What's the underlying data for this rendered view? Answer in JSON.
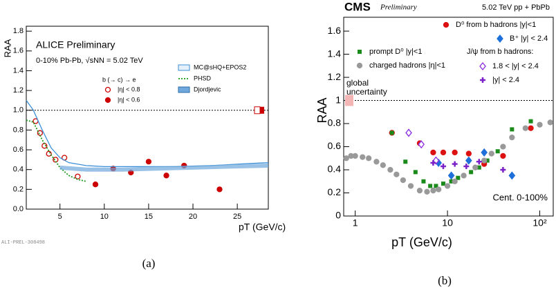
{
  "chart_data": [
    {
      "type": "scatter",
      "title": "ALICE Preliminary",
      "subtitle": "0-10% Pb-Pb, √sNN = 5.02 TeV",
      "legend_title": "b (→ c) → e",
      "xlabel": "pT (GeV/c)",
      "ylabel": "RAA",
      "watermark": "ALI-PREL-308498",
      "caption": "(a)",
      "xlim": [
        1.2,
        28.5
      ],
      "xticks": [
        5,
        10,
        15,
        20,
        25
      ],
      "ylim": [
        0,
        1.85
      ],
      "yticks": [
        {
          "value": 0,
          "label": "0.0"
        },
        0.2,
        0.4,
        0.6,
        0.8,
        {
          "value": 1,
          "label": "1.0"
        },
        1.2,
        1.4,
        1.6,
        1.8
      ],
      "reference_line": 1,
      "series": [
        {
          "name": "|η| < 0.8",
          "color": "#cc0000",
          "marker": "open-circle",
          "x": [
            2.25,
            2.75,
            3.25,
            3.75,
            4.5,
            5.5,
            7
          ],
          "values": [
            0.89,
            0.77,
            0.64,
            0.56,
            0.5,
            0.52,
            0.33
          ]
        },
        {
          "name": "|η| < 0.6",
          "color": "#cc0000",
          "marker": "circle",
          "x": [
            9,
            11,
            13,
            15,
            17,
            19,
            23
          ],
          "values": [
            0.25,
            0.41,
            0.37,
            0.48,
            0.34,
            0.44,
            0.2
          ]
        },
        {
          "name": "MC@sHQ+EPOS2",
          "color": "#3a8fd8",
          "marker": "line",
          "x": [
            1.2,
            2,
            3,
            4,
            5,
            6,
            8,
            10,
            14,
            18,
            22,
            26,
            28.5
          ],
          "values": [
            1.1,
            1.0,
            0.8,
            0.62,
            0.52,
            0.47,
            0.44,
            0.43,
            0.43,
            0.43,
            0.44,
            0.46,
            0.47
          ]
        },
        {
          "name": "PHSD",
          "color": "#1a9a1a",
          "marker": "dotted",
          "x": [
            1.2,
            2,
            3,
            4,
            5,
            6,
            7,
            8
          ],
          "values": [
            0.9,
            0.88,
            0.7,
            0.55,
            0.42,
            0.34,
            0.3,
            0.28
          ]
        },
        {
          "name": "Djordjevic",
          "color": "#6fa8dc",
          "marker": "band",
          "x": [
            5,
            8,
            12,
            16,
            20,
            24,
            28.5
          ],
          "values": [
            0.42,
            0.4,
            0.4,
            0.41,
            0.42,
            0.43,
            0.44
          ]
        }
      ]
    },
    {
      "type": "scatter",
      "title": "CMS",
      "subtitle": "Preliminary",
      "energy": "5.02 TeV pp + PbPb",
      "xlabel": "pT (GeV/c)",
      "ylabel": "RAA",
      "caption": "(b)",
      "annotations": [
        "global",
        "uncertainty",
        "Cent. 0-100%"
      ],
      "legend_group_title": "J/ψ from b hadrons:",
      "xlog": true,
      "xlim": [
        0.75,
        140
      ],
      "xticks": [
        1,
        10,
        {
          "value": 100,
          "label": "10²"
        }
      ],
      "ylim": [
        0,
        1.72
      ],
      "yticks": [
        0,
        0.2,
        0.4,
        0.6,
        0.8,
        1,
        1.2,
        1.4,
        1.6
      ],
      "reference_line": 1,
      "series": [
        {
          "name": "D⁰ from b hadrons |y|<1",
          "color": "#dd1111",
          "marker": "circle",
          "x": [
            2.5,
            5,
            7,
            9,
            12,
            17,
            25,
            40,
            80
          ],
          "values": [
            0.72,
            0.63,
            0.55,
            0.55,
            0.55,
            0.54,
            0.45,
            0.52,
            0.76
          ]
        },
        {
          "name": "B⁺ |y| < 2.4",
          "color": "#1e6fd9",
          "marker": "diamond",
          "x": [
            8,
            11,
            17,
            25,
            50
          ],
          "values": [
            0.46,
            0.35,
            0.48,
            0.55,
            0.35
          ]
        },
        {
          "name": "prompt D⁰ |y|<1",
          "color": "#1a8a1a",
          "marker": "square",
          "x": [
            2.5,
            3.5,
            4.5,
            5.5,
            6.5,
            7.5,
            9,
            11,
            13,
            15,
            18,
            22,
            27,
            35,
            50,
            80
          ],
          "values": [
            0.72,
            0.47,
            0.38,
            0.3,
            0.26,
            0.26,
            0.28,
            0.3,
            0.33,
            0.35,
            0.38,
            0.42,
            0.48,
            0.56,
            0.75,
            0.82
          ]
        },
        {
          "name": "charged hadrons |η|<1",
          "color": "#999999",
          "marker": "circle",
          "x": [
            0.8,
            0.9,
            1,
            1.2,
            1.4,
            1.7,
            2,
            2.4,
            2.8,
            3.3,
            4,
            5,
            6,
            7,
            8,
            10,
            12,
            15,
            20,
            25,
            30,
            40,
            50,
            70,
            100,
            130
          ],
          "values": [
            0.5,
            0.52,
            0.52,
            0.51,
            0.5,
            0.47,
            0.44,
            0.4,
            0.36,
            0.31,
            0.26,
            0.22,
            0.21,
            0.22,
            0.23,
            0.26,
            0.3,
            0.35,
            0.42,
            0.48,
            0.54,
            0.6,
            0.68,
            0.76,
            0.79,
            0.81
          ]
        },
        {
          "name": "1.8 < |y| < 2.4",
          "color": "#8a2be2",
          "marker": "open-diamond",
          "x": [
            3.8,
            5.2,
            7.5
          ],
          "values": [
            0.72,
            0.62,
            0.48
          ]
        },
        {
          "name": "|y| < 2.4",
          "color": "#7a22c8",
          "marker": "cross",
          "x": [
            7,
            9,
            12,
            16,
            22,
            40
          ],
          "values": [
            0.46,
            0.43,
            0.45,
            0.43,
            0.47,
            0.4
          ]
        }
      ]
    }
  ]
}
